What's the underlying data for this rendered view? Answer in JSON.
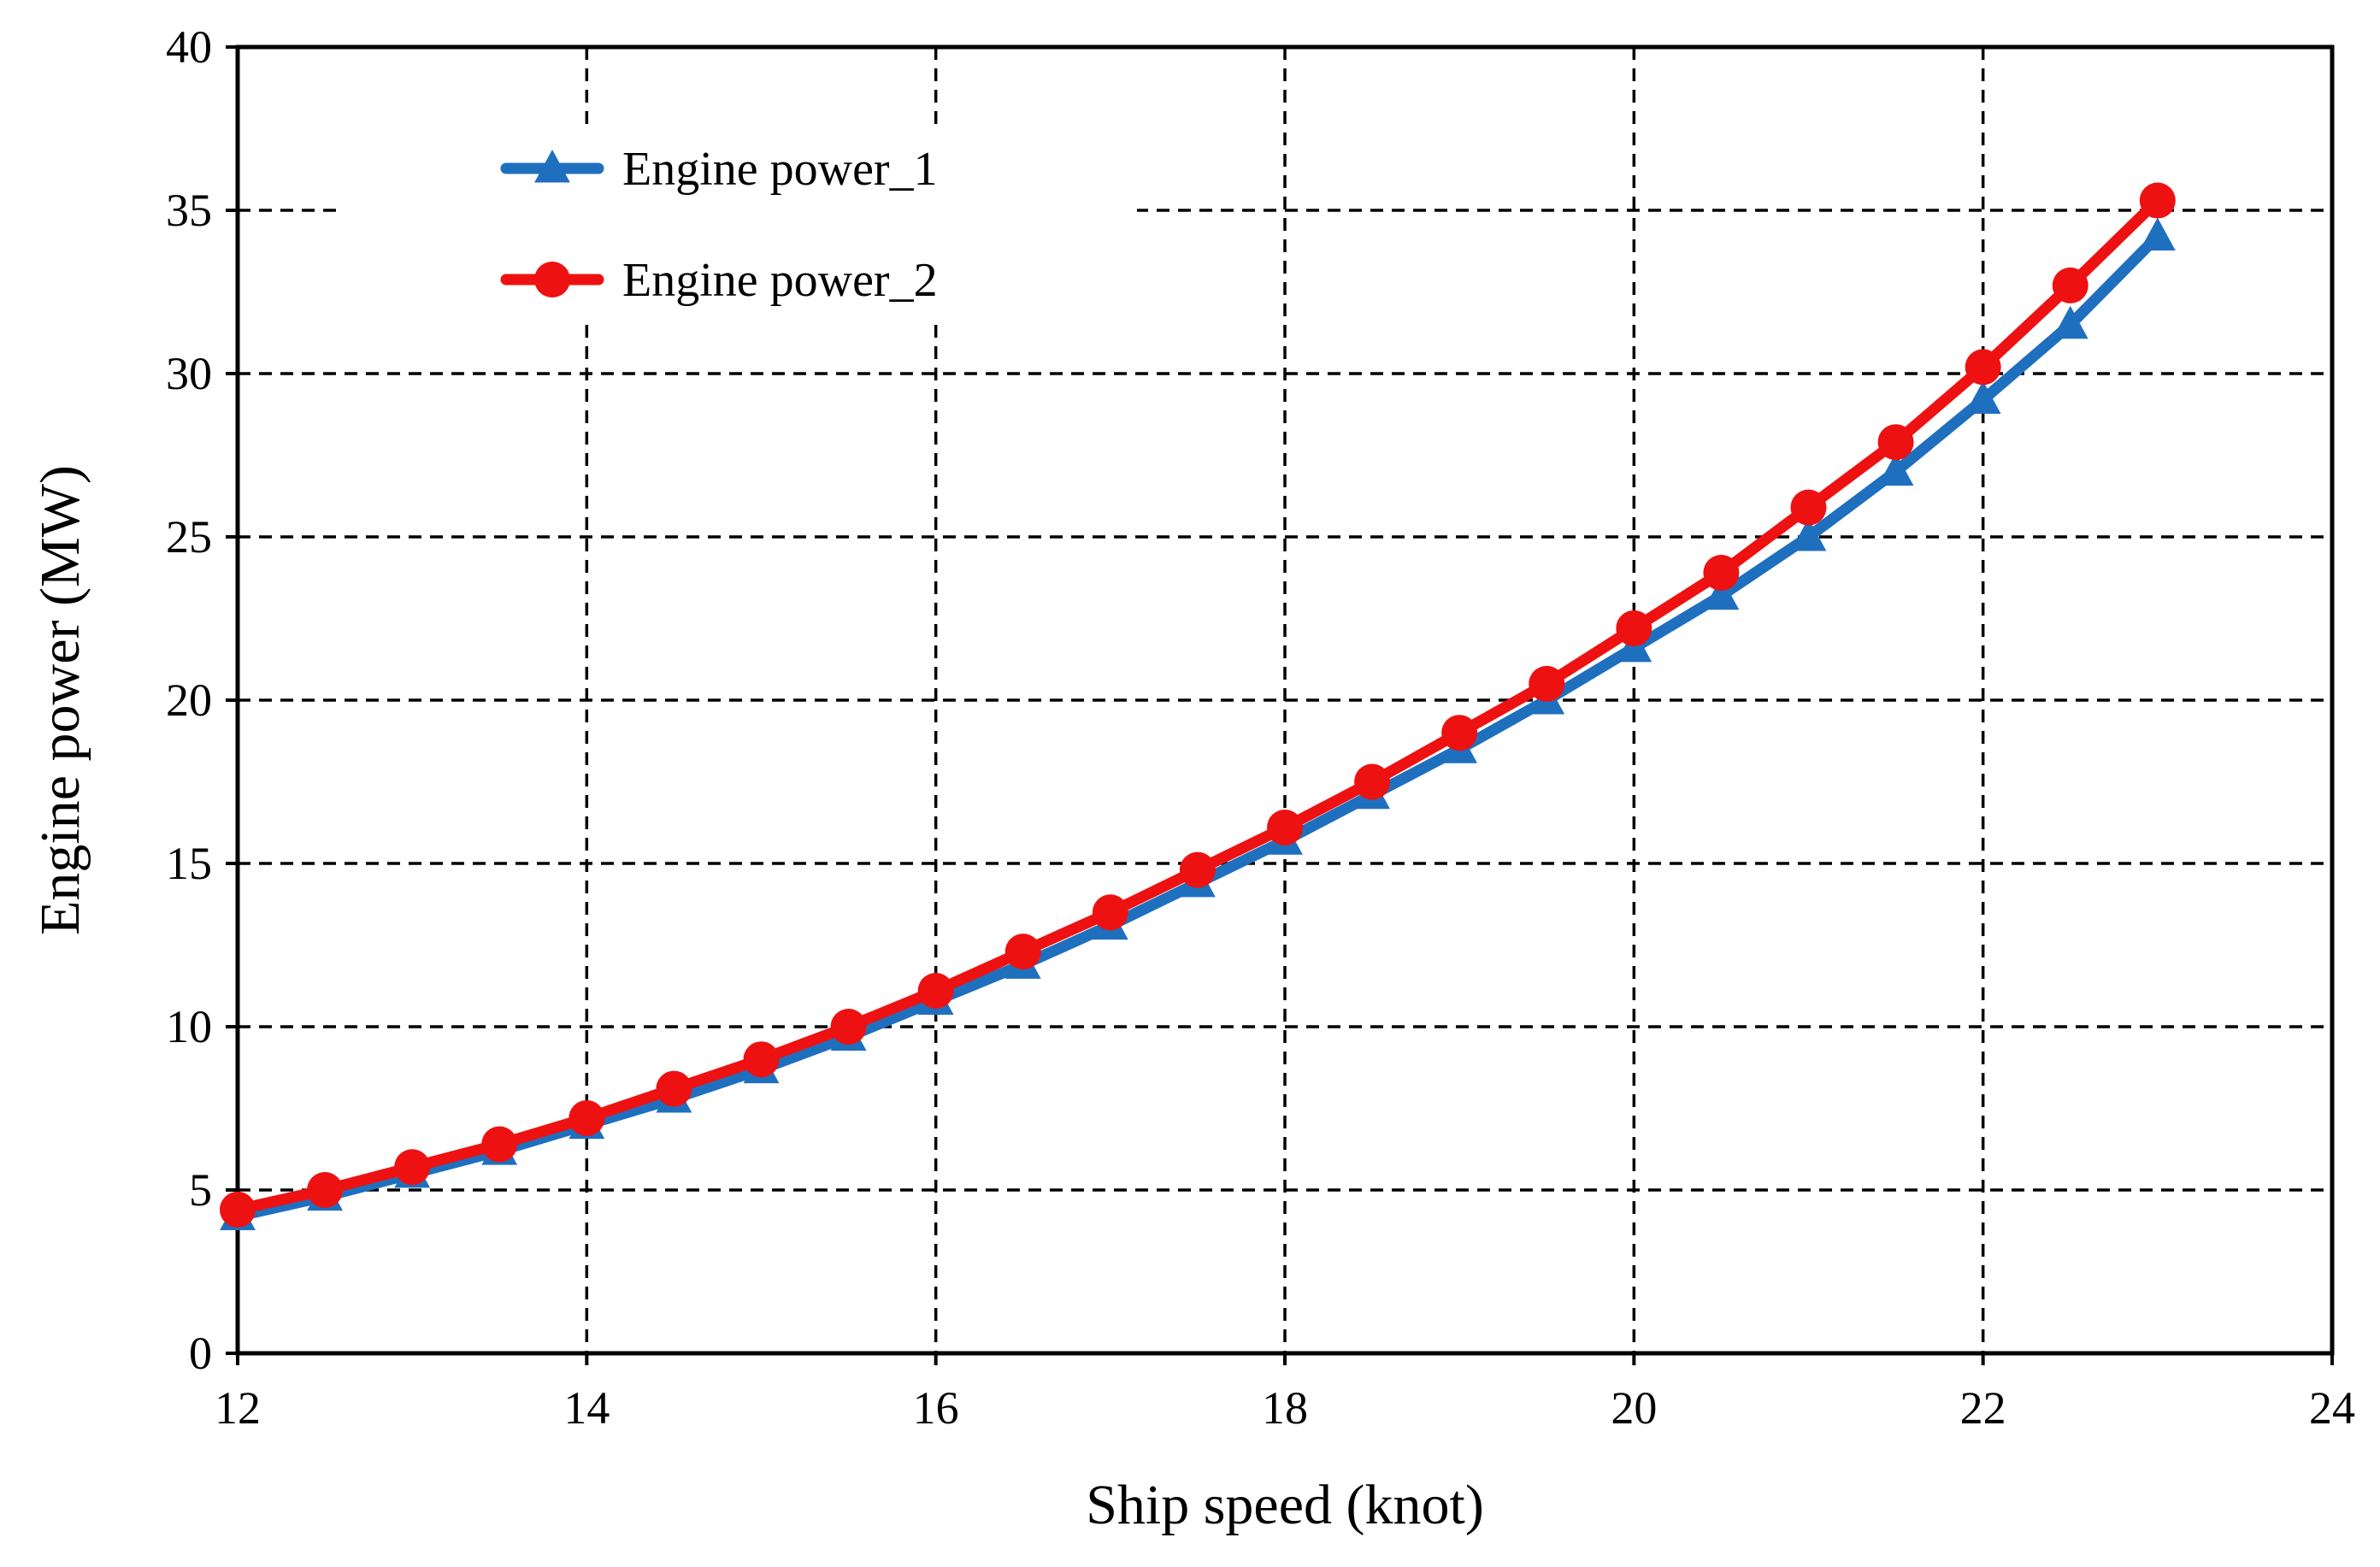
{
  "chart_data": {
    "type": "line",
    "title": "",
    "xlabel": "Ship speed (knot)",
    "ylabel": "Engine power (MW)",
    "xlim": [
      12,
      24
    ],
    "ylim": [
      0,
      40
    ],
    "xticks": [
      12,
      14,
      16,
      18,
      20,
      22,
      24
    ],
    "yticks": [
      0,
      5,
      10,
      15,
      20,
      25,
      30,
      35,
      40
    ],
    "grid": true,
    "legend_position": "top-left",
    "x": [
      12,
      12.5,
      13,
      13.5,
      14,
      14.5,
      15,
      15.5,
      16,
      16.5,
      17,
      17.5,
      18,
      18.5,
      19,
      19.5,
      20,
      20.5,
      21,
      21.5,
      22,
      22.5,
      23
    ],
    "series": [
      {
        "name": "Engine power_1",
        "color": "#1f6fbf",
        "marker": "triangle",
        "values": [
          4.2,
          4.8,
          5.5,
          6.2,
          7.0,
          7.8,
          8.7,
          9.7,
          10.8,
          11.9,
          13.1,
          14.4,
          15.7,
          17.1,
          18.5,
          20.0,
          21.6,
          23.2,
          25.0,
          27.0,
          29.2,
          31.5,
          34.2
        ]
      },
      {
        "name": "Engine power_2",
        "color": "#ee1111",
        "marker": "circle",
        "values": [
          4.4,
          5.0,
          5.7,
          6.4,
          7.2,
          8.1,
          9.0,
          10.0,
          11.1,
          12.3,
          13.5,
          14.8,
          16.1,
          17.5,
          19.0,
          20.5,
          22.2,
          23.9,
          25.9,
          27.9,
          30.2,
          32.7,
          35.3
        ]
      }
    ]
  }
}
